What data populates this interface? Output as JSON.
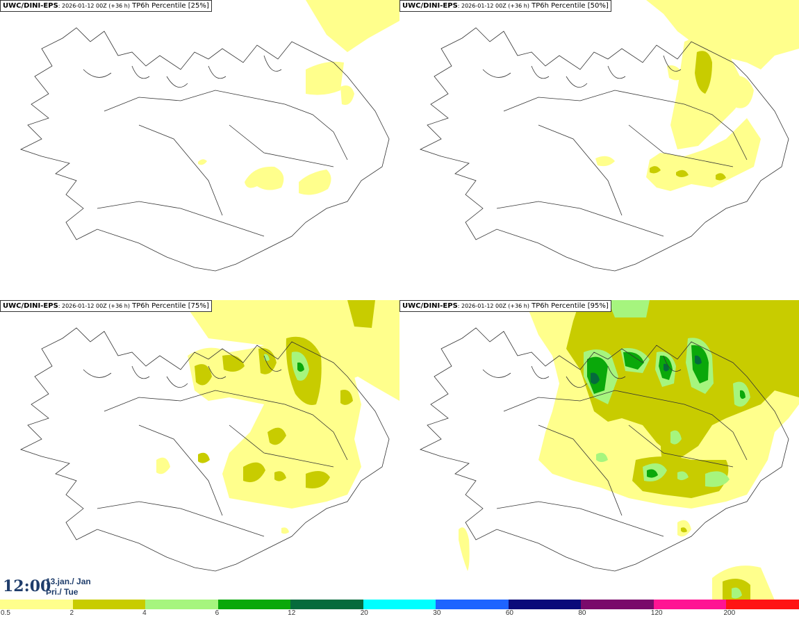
{
  "panels": [
    {
      "model": "UWC/DINI-EPS",
      "run": ": 2026-01-12 00Z (+36 h)",
      "param": " TP6h Percentile [25%]"
    },
    {
      "model": "UWC/DINI-EPS",
      "run": ": 2026-01-12 00Z (+36 h)",
      "param": " TP6h Percentile [50%]"
    },
    {
      "model": "UWC/DINI-EPS",
      "run": ": 2026-01-12 00Z (+36 h)",
      "param": " TP6h Percentile [75%]"
    },
    {
      "model": "UWC/DINI-EPS",
      "run": ": 2026-01-12 00Z (+36 h)",
      "param": " TP6h Percentile [95%]"
    }
  ],
  "valid_time": {
    "time": "12:00",
    "date": "13.jan./ Jan",
    "weekday": "Þri./ Tue"
  },
  "legend": {
    "colors": [
      "#ffff8c",
      "#c8cc00",
      "#a6f57e",
      "#0aa80a",
      "#056b3c",
      "#00ffff",
      "#1e64ff",
      "#0a0a7a",
      "#7a0a6b",
      "#ff1493",
      "#ff1414"
    ],
    "ticks": [
      "0.5",
      "2",
      "4",
      "6",
      "12",
      "20",
      "30",
      "60",
      "80",
      "120",
      "200"
    ]
  }
}
